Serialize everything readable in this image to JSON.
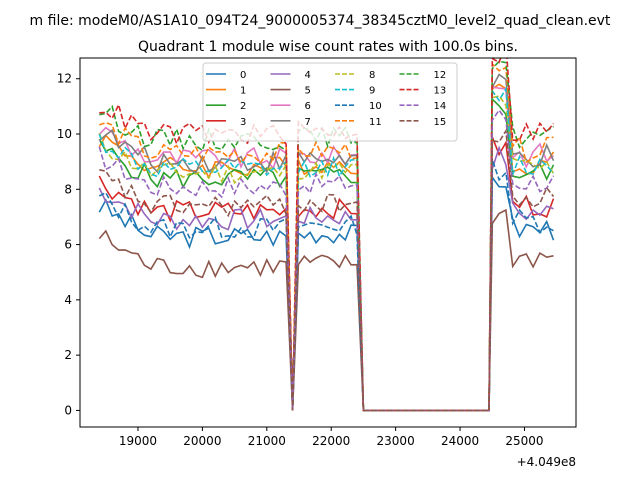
{
  "chart_data": {
    "type": "line",
    "suptitle": "m file: modeM0/AS1A10_094T24_9000005374_38345cztM0_level2_quad_clean.evt",
    "title": "Quadrant 1 module wise count rates with 100.0s bins.",
    "xlabel": "",
    "ylabel": "",
    "x_offset_text": "+4.049e8",
    "xlim": [
      18100,
      25800
    ],
    "ylim": [
      -0.6,
      12.75
    ],
    "xticks": [
      19000,
      20000,
      21000,
      22000,
      23000,
      24000,
      25000
    ],
    "yticks": [
      0,
      2,
      4,
      6,
      8,
      10,
      12
    ],
    "grid": false,
    "legend": {
      "placement": "top-center",
      "columns": 4
    },
    "segments": [
      {
        "x_start": 18400,
        "x_end": 21300,
        "points": 30
      },
      {
        "x_start": 21400,
        "x_end": 22500,
        "points": 12,
        "note": "dip to zero then recovery"
      },
      {
        "x_start": 22500,
        "x_end": 24450,
        "flat_zero": true
      },
      {
        "x_start": 24500,
        "x_end": 25450,
        "points": 10
      }
    ],
    "series": [
      {
        "name": "0",
        "color": "#1f77b4",
        "style": "solid",
        "level": 6.3
      },
      {
        "name": "1",
        "color": "#ff7f0e",
        "style": "solid",
        "level": 8.8
      },
      {
        "name": "2",
        "color": "#2ca02c",
        "style": "solid",
        "level": 8.4
      },
      {
        "name": "3",
        "color": "#d62728",
        "style": "solid",
        "level": 7.2
      },
      {
        "name": "4",
        "color": "#9467bd",
        "style": "solid",
        "level": 6.9
      },
      {
        "name": "5",
        "color": "#8c564b",
        "style": "solid",
        "level": 5.2
      },
      {
        "name": "6",
        "color": "#e377c2",
        "style": "solid",
        "level": 9.1
      },
      {
        "name": "7",
        "color": "#7f7f7f",
        "style": "solid",
        "level": 9.0
      },
      {
        "name": "8",
        "color": "#bcbd22",
        "style": "dashed",
        "level": 8.6
      },
      {
        "name": "9",
        "color": "#17becf",
        "style": "dashed",
        "level": 8.7
      },
      {
        "name": "10",
        "color": "#1f77b4",
        "style": "dashed",
        "level": 6.6
      },
      {
        "name": "11",
        "color": "#ff7f0e",
        "style": "dashed",
        "level": 9.3
      },
      {
        "name": "12",
        "color": "#2ca02c",
        "style": "dashed",
        "level": 9.8
      },
      {
        "name": "13",
        "color": "#d62728",
        "style": "dashed",
        "level": 10.0
      },
      {
        "name": "14",
        "color": "#9467bd",
        "style": "dashed",
        "level": 8.1
      },
      {
        "name": "15",
        "color": "#8c564b",
        "style": "dashed",
        "level": 7.4
      }
    ]
  }
}
